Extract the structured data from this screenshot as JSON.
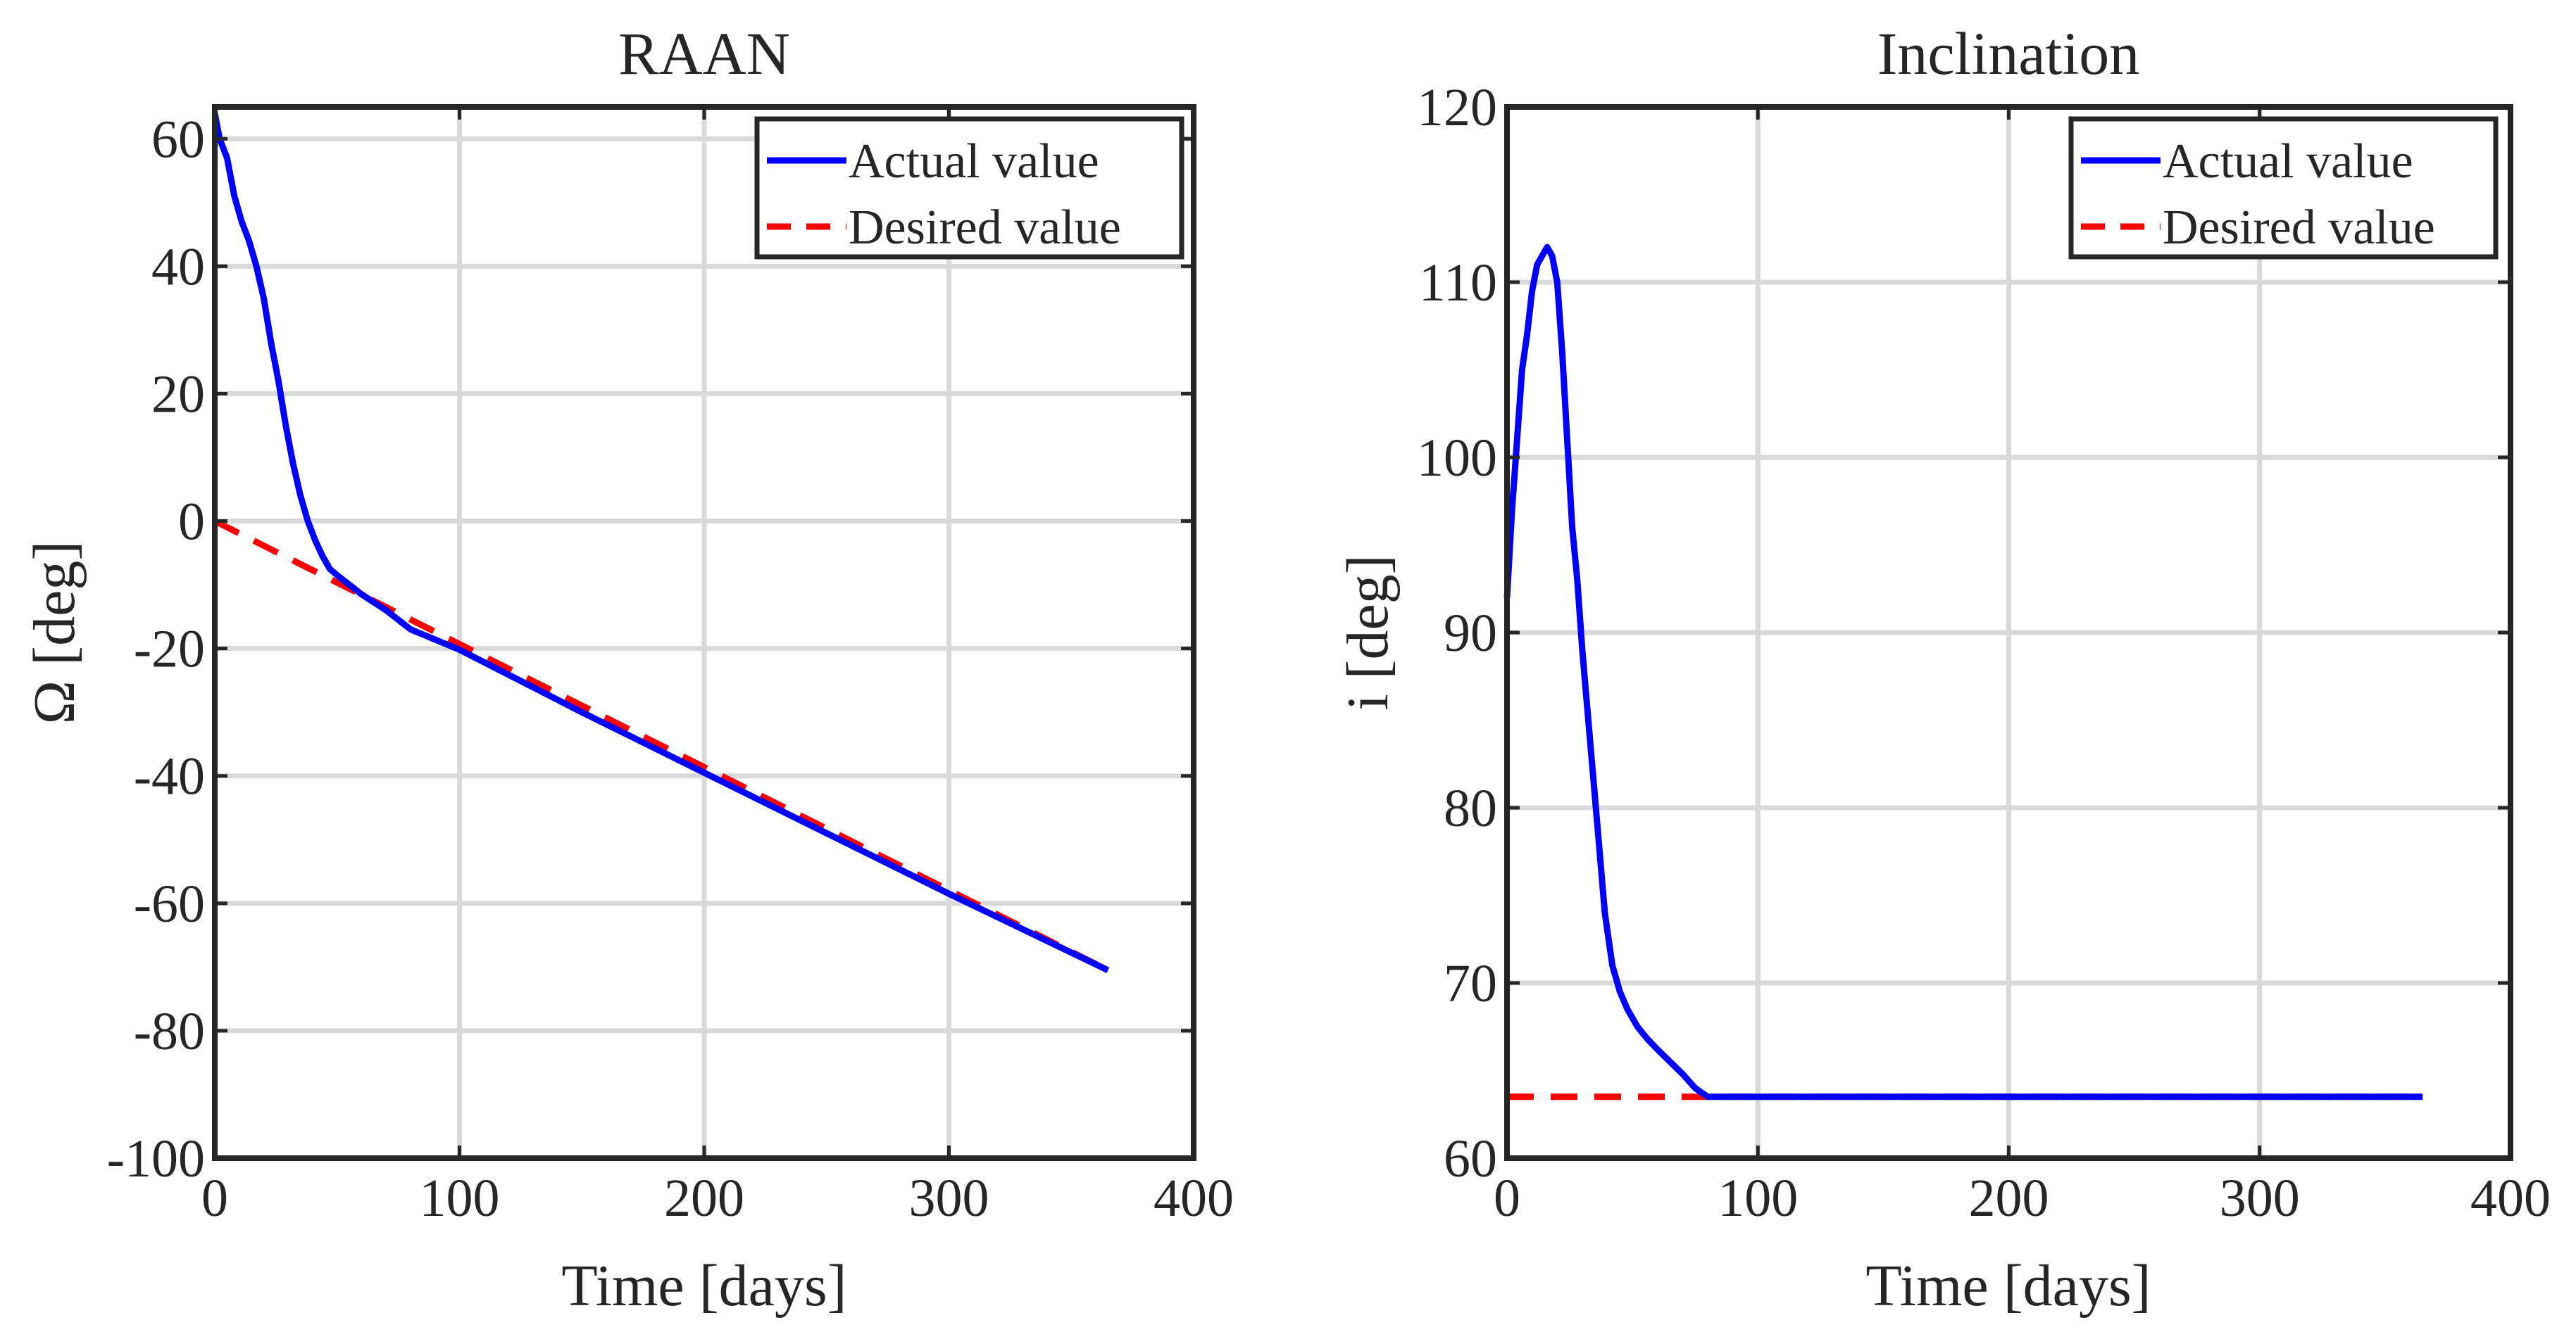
{
  "chart_data": [
    {
      "type": "line",
      "title": "RAAN",
      "xlabel": "Time [days]",
      "ylabel": "Ω [deg]",
      "xlim": [
        0,
        400
      ],
      "ylim": [
        -100,
        65
      ],
      "xticks": [
        0,
        100,
        200,
        300,
        400
      ],
      "yticks": [
        -100,
        -80,
        -60,
        -40,
        -20,
        0,
        20,
        40,
        60
      ],
      "xtick_labels": [
        "0",
        "100",
        "200",
        "300",
        "400"
      ],
      "ytick_labels": [
        "-100",
        "-80",
        "-60",
        "-40",
        "-20",
        "0",
        "20",
        "40",
        "60"
      ],
      "grid": true,
      "legend_position": "top-right",
      "series": [
        {
          "name": "Actual value",
          "color": "#0000ff",
          "style": "solid",
          "x": [
            0,
            2,
            5,
            8,
            11,
            14,
            17,
            20,
            23,
            26,
            29,
            32,
            35,
            38,
            41,
            44,
            47,
            50,
            55,
            60,
            70,
            80,
            100,
            150,
            200,
            250,
            300,
            365
          ],
          "y": [
            64,
            60,
            57,
            51,
            47,
            44,
            40,
            35,
            28,
            22,
            15,
            9,
            4,
            0,
            -3,
            -5.5,
            -7.5,
            -8.5,
            -10,
            -11.5,
            -14,
            -17,
            -20.2,
            -30,
            -39.5,
            -49,
            -58.5,
            -70.5
          ]
        },
        {
          "name": "Desired value",
          "color": "#ff0000",
          "style": "dashed",
          "x": [
            0,
            365
          ],
          "y": [
            0,
            -70.5
          ]
        }
      ]
    },
    {
      "type": "line",
      "title": "Inclination",
      "xlabel": "Time [days]",
      "ylabel": "i [deg]",
      "xlim": [
        0,
        400
      ],
      "ylim": [
        60,
        120
      ],
      "xticks": [
        0,
        100,
        200,
        300,
        400
      ],
      "yticks": [
        60,
        70,
        80,
        90,
        100,
        110,
        120
      ],
      "xtick_labels": [
        "0",
        "100",
        "200",
        "300",
        "400"
      ],
      "ytick_labels": [
        "60",
        "70",
        "80",
        "90",
        "100",
        "110",
        "120"
      ],
      "grid": true,
      "legend_position": "top-right",
      "series": [
        {
          "name": "Actual value",
          "color": "#0000ff",
          "style": "solid",
          "x": [
            0,
            2,
            4,
            6,
            8,
            10,
            12,
            14,
            16,
            18,
            20,
            22,
            24,
            26,
            28,
            30,
            33,
            36,
            39,
            42,
            45,
            48,
            52,
            56,
            60,
            65,
            70,
            75,
            80,
            100,
            200,
            300,
            365
          ],
          "y": [
            92,
            97,
            101,
            105,
            107,
            109.5,
            111,
            111.5,
            112,
            111.5,
            110,
            106,
            101,
            96,
            93,
            89,
            84,
            79,
            74,
            71,
            69.5,
            68.5,
            67.5,
            66.8,
            66.2,
            65.5,
            64.8,
            64,
            63.5,
            63.5,
            63.5,
            63.5,
            63.5
          ]
        },
        {
          "name": "Desired value",
          "color": "#ff0000",
          "style": "dashed",
          "x": [
            0,
            365
          ],
          "y": [
            63.5,
            63.5
          ]
        }
      ]
    }
  ]
}
